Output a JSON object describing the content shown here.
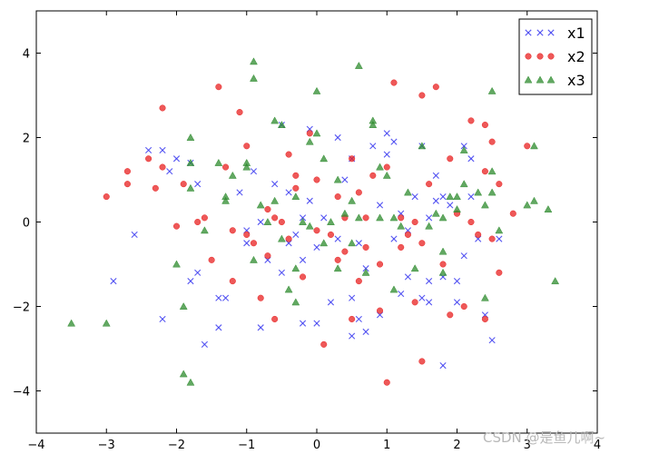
{
  "chart_data": {
    "type": "scatter",
    "xlim": [
      -4,
      4
    ],
    "ylim": [
      -5,
      5
    ],
    "xticks": [
      -4,
      -3,
      -2,
      -1,
      0,
      1,
      2,
      3,
      4
    ],
    "yticks": [
      -4,
      -2,
      0,
      2,
      4
    ],
    "xtick_labels": [
      "−4",
      "−3",
      "−2",
      "−1",
      "0",
      "1",
      "2",
      "3",
      "4"
    ],
    "ytick_labels": [
      "−4",
      "−2",
      "0",
      "2",
      "4"
    ],
    "grid": false,
    "legend_position": "top-right",
    "series": [
      {
        "name": "x1",
        "marker": "x",
        "color": "#3b3bf0",
        "points": [
          [
            -2.9,
            -1.4
          ],
          [
            -2.6,
            -0.3
          ],
          [
            -2.4,
            1.7
          ],
          [
            -2.2,
            1.7
          ],
          [
            -2.2,
            -2.3
          ],
          [
            -2.1,
            1.2
          ],
          [
            -2.0,
            1.5
          ],
          [
            -1.8,
            1.4
          ],
          [
            -1.7,
            0.9
          ],
          [
            -1.8,
            -1.4
          ],
          [
            -1.7,
            -1.2
          ],
          [
            -1.6,
            -2.9
          ],
          [
            -1.4,
            -1.8
          ],
          [
            -1.3,
            -1.8
          ],
          [
            -1.4,
            -2.5
          ],
          [
            -1.1,
            0.7
          ],
          [
            -1.0,
            -0.5
          ],
          [
            -0.9,
            1.2
          ],
          [
            -0.8,
            0.0
          ],
          [
            -0.8,
            -2.5
          ],
          [
            -0.7,
            -0.9
          ],
          [
            -0.6,
            0.9
          ],
          [
            -0.5,
            2.3
          ],
          [
            -0.5,
            -1.2
          ],
          [
            -0.4,
            0.7
          ],
          [
            -0.4,
            -0.5
          ],
          [
            -0.3,
            -0.3
          ],
          [
            -0.2,
            0.1
          ],
          [
            -0.2,
            -2.4
          ],
          [
            -0.1,
            2.2
          ],
          [
            -0.1,
            0.5
          ],
          [
            0.0,
            -2.4
          ],
          [
            0.0,
            -0.6
          ],
          [
            0.1,
            0.1
          ],
          [
            0.2,
            -1.9
          ],
          [
            0.3,
            -0.4
          ],
          [
            0.4,
            1.0
          ],
          [
            0.5,
            1.5
          ],
          [
            0.5,
            -1.8
          ],
          [
            0.5,
            -2.7
          ],
          [
            0.6,
            -2.3
          ],
          [
            0.6,
            -0.5
          ],
          [
            0.7,
            -2.6
          ],
          [
            0.7,
            -1.1
          ],
          [
            0.8,
            1.8
          ],
          [
            0.9,
            -2.2
          ],
          [
            1.0,
            1.6
          ],
          [
            1.0,
            2.1
          ],
          [
            1.1,
            1.9
          ],
          [
            1.1,
            -0.4
          ],
          [
            1.2,
            0.2
          ],
          [
            1.2,
            -1.7
          ],
          [
            1.3,
            -1.3
          ],
          [
            1.3,
            -0.2
          ],
          [
            1.4,
            0.6
          ],
          [
            1.5,
            1.8
          ],
          [
            1.5,
            -1.8
          ],
          [
            1.6,
            0.1
          ],
          [
            1.6,
            -1.9
          ],
          [
            1.6,
            -1.4
          ],
          [
            1.7,
            0.5
          ],
          [
            1.8,
            -3.4
          ],
          [
            1.8,
            0.6
          ],
          [
            1.8,
            -1.3
          ],
          [
            1.9,
            0.4
          ],
          [
            2.0,
            -1.4
          ],
          [
            2.0,
            -1.9
          ],
          [
            2.1,
            1.8
          ],
          [
            2.1,
            -0.8
          ],
          [
            2.2,
            1.5
          ],
          [
            2.2,
            0.6
          ],
          [
            2.3,
            -0.4
          ],
          [
            2.4,
            -2.2
          ],
          [
            2.5,
            -2.8
          ],
          [
            2.6,
            -0.4
          ],
          [
            -1.0,
            -0.2
          ],
          [
            0.3,
            2.0
          ],
          [
            1.7,
            1.1
          ],
          [
            -0.2,
            -0.9
          ],
          [
            0.9,
            0.4
          ]
        ]
      },
      {
        "name": "x2",
        "marker": "o",
        "color": "#e82020",
        "points": [
          [
            -3.0,
            0.6
          ],
          [
            -2.7,
            1.2
          ],
          [
            -2.7,
            0.9
          ],
          [
            -2.4,
            1.5
          ],
          [
            -2.3,
            0.8
          ],
          [
            -2.2,
            2.7
          ],
          [
            -2.2,
            1.3
          ],
          [
            -2.0,
            -0.1
          ],
          [
            -1.9,
            0.9
          ],
          [
            -1.7,
            0.0
          ],
          [
            -1.6,
            0.1
          ],
          [
            -1.4,
            3.2
          ],
          [
            -1.3,
            1.3
          ],
          [
            -1.2,
            -0.2
          ],
          [
            -1.2,
            -1.4
          ],
          [
            -1.1,
            2.6
          ],
          [
            -1.0,
            1.8
          ],
          [
            -1.0,
            -0.3
          ],
          [
            -0.9,
            -0.5
          ],
          [
            -0.8,
            -1.8
          ],
          [
            -0.7,
            0.3
          ],
          [
            -0.7,
            -0.8
          ],
          [
            -0.6,
            0.1
          ],
          [
            -0.6,
            -2.3
          ],
          [
            -0.4,
            1.6
          ],
          [
            -0.4,
            -0.4
          ],
          [
            -0.3,
            1.1
          ],
          [
            -0.3,
            0.8
          ],
          [
            -0.2,
            -1.3
          ],
          [
            -0.1,
            2.1
          ],
          [
            0.0,
            1.0
          ],
          [
            0.0,
            -0.2
          ],
          [
            0.1,
            -2.9
          ],
          [
            0.2,
            -0.3
          ],
          [
            0.3,
            0.6
          ],
          [
            0.3,
            -0.9
          ],
          [
            0.4,
            0.1
          ],
          [
            0.5,
            1.5
          ],
          [
            0.5,
            -2.3
          ],
          [
            0.6,
            0.7
          ],
          [
            0.6,
            -1.4
          ],
          [
            0.7,
            0.1
          ],
          [
            0.7,
            -0.6
          ],
          [
            0.8,
            1.1
          ],
          [
            0.9,
            -1.0
          ],
          [
            0.9,
            -2.1
          ],
          [
            1.0,
            1.3
          ],
          [
            1.0,
            -3.8
          ],
          [
            1.1,
            3.3
          ],
          [
            1.2,
            0.1
          ],
          [
            1.2,
            -0.6
          ],
          [
            1.3,
            -0.3
          ],
          [
            1.4,
            -1.9
          ],
          [
            1.5,
            -0.5
          ],
          [
            1.5,
            3.0
          ],
          [
            1.5,
            -3.3
          ],
          [
            1.6,
            0.9
          ],
          [
            1.7,
            3.2
          ],
          [
            1.8,
            -1.0
          ],
          [
            1.9,
            -2.2
          ],
          [
            1.9,
            1.5
          ],
          [
            2.0,
            0.2
          ],
          [
            2.1,
            -2.0
          ],
          [
            2.2,
            2.4
          ],
          [
            2.3,
            -0.3
          ],
          [
            2.4,
            -2.3
          ],
          [
            2.4,
            1.2
          ],
          [
            2.5,
            1.9
          ],
          [
            2.5,
            -0.4
          ],
          [
            2.6,
            0.9
          ],
          [
            2.6,
            -1.2
          ],
          [
            2.8,
            0.2
          ],
          [
            3.0,
            1.8
          ],
          [
            -0.5,
            0.0
          ],
          [
            0.4,
            -0.7
          ],
          [
            1.4,
            0.0
          ],
          [
            2.2,
            0.0
          ],
          [
            -1.5,
            -0.9
          ],
          [
            2.4,
            2.3
          ]
        ]
      },
      {
        "name": "x3",
        "marker": "^",
        "color": "#2e8b2e",
        "points": [
          [
            -3.5,
            -2.4
          ],
          [
            -3.0,
            -2.4
          ],
          [
            -2.0,
            -1.0
          ],
          [
            -1.9,
            -2.0
          ],
          [
            -1.9,
            -3.6
          ],
          [
            -1.8,
            -3.8
          ],
          [
            -1.8,
            2.0
          ],
          [
            -1.8,
            1.4
          ],
          [
            -1.8,
            0.8
          ],
          [
            -1.6,
            -0.2
          ],
          [
            -1.4,
            1.4
          ],
          [
            -1.3,
            0.6
          ],
          [
            -1.3,
            0.5
          ],
          [
            -1.2,
            1.1
          ],
          [
            -1.0,
            1.4
          ],
          [
            -1.0,
            1.3
          ],
          [
            -0.9,
            -0.9
          ],
          [
            -0.9,
            3.8
          ],
          [
            -0.9,
            3.4
          ],
          [
            -0.8,
            0.4
          ],
          [
            -0.7,
            0.0
          ],
          [
            -0.6,
            0.5
          ],
          [
            -0.6,
            2.4
          ],
          [
            -0.5,
            2.3
          ],
          [
            -0.5,
            -0.4
          ],
          [
            -0.4,
            -1.6
          ],
          [
            -0.3,
            -1.9
          ],
          [
            -0.3,
            -1.1
          ],
          [
            -0.2,
            0.0
          ],
          [
            -0.1,
            1.9
          ],
          [
            -0.1,
            -0.1
          ],
          [
            0.0,
            3.1
          ],
          [
            0.0,
            2.1
          ],
          [
            0.1,
            -0.5
          ],
          [
            0.1,
            1.5
          ],
          [
            0.2,
            0.0
          ],
          [
            0.3,
            -1.1
          ],
          [
            0.3,
            1.0
          ],
          [
            0.4,
            0.2
          ],
          [
            0.5,
            0.5
          ],
          [
            0.5,
            -0.5
          ],
          [
            0.6,
            3.7
          ],
          [
            0.6,
            0.1
          ],
          [
            0.7,
            -1.2
          ],
          [
            0.8,
            2.3
          ],
          [
            0.8,
            2.4
          ],
          [
            0.9,
            0.1
          ],
          [
            1.0,
            1.1
          ],
          [
            1.1,
            0.1
          ],
          [
            1.1,
            -1.6
          ],
          [
            1.2,
            -0.1
          ],
          [
            1.3,
            0.7
          ],
          [
            1.4,
            -1.1
          ],
          [
            1.5,
            1.8
          ],
          [
            1.6,
            -0.1
          ],
          [
            1.7,
            0.2
          ],
          [
            1.8,
            0.1
          ],
          [
            1.8,
            -0.7
          ],
          [
            1.9,
            0.6
          ],
          [
            2.0,
            0.3
          ],
          [
            2.0,
            0.6
          ],
          [
            2.1,
            0.9
          ],
          [
            2.1,
            1.7
          ],
          [
            2.3,
            0.7
          ],
          [
            2.4,
            -1.8
          ],
          [
            2.4,
            0.4
          ],
          [
            2.5,
            0.7
          ],
          [
            2.5,
            1.2
          ],
          [
            2.5,
            3.1
          ],
          [
            2.6,
            -0.2
          ],
          [
            3.0,
            0.4
          ],
          [
            3.1,
            0.5
          ],
          [
            3.1,
            1.8
          ],
          [
            3.3,
            0.3
          ],
          [
            3.4,
            -1.4
          ],
          [
            1.8,
            -1.2
          ],
          [
            -0.3,
            0.6
          ],
          [
            0.9,
            1.3
          ]
        ]
      }
    ]
  },
  "watermark": "CSDN @是鱼儿啊~"
}
